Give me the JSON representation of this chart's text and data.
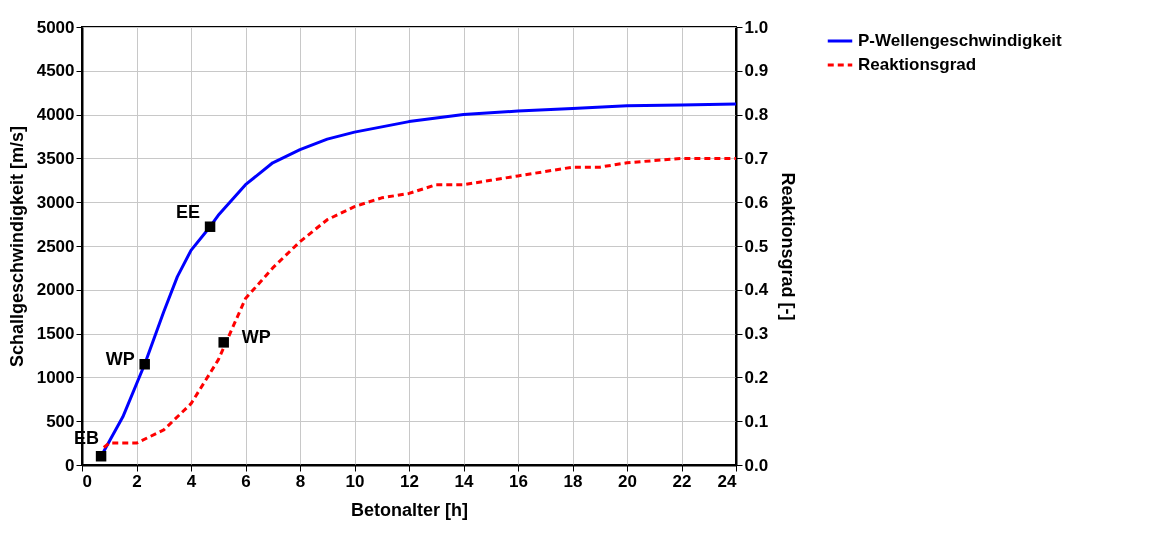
{
  "chart_data": {
    "type": "line",
    "xlabel": "Betonalter [h]",
    "ylabel": "Schallgeschwindigkeit [m/s]",
    "y2label": "Reaktionsgrad [-]",
    "xlim": [
      0,
      24
    ],
    "xticks": [
      0,
      2,
      4,
      6,
      8,
      10,
      12,
      14,
      16,
      18,
      20,
      22,
      24
    ],
    "ylim": [
      0,
      5000
    ],
    "yticks": [
      0,
      500,
      1000,
      1500,
      2000,
      2500,
      3000,
      3500,
      4000,
      4500,
      5000
    ],
    "y2lim": [
      0,
      1
    ],
    "y2ticks": [
      {
        "value": 0,
        "label": "0.0"
      },
      {
        "value": 0.1,
        "label": "0.1"
      },
      {
        "value": 0.2,
        "label": "0.2"
      },
      {
        "value": 0.3,
        "label": "0.3"
      },
      {
        "value": 0.4,
        "label": "0.4"
      },
      {
        "value": 0.5,
        "label": "0.5"
      },
      {
        "value": 0.6,
        "label": "0.6"
      },
      {
        "value": 0.7,
        "label": "0.7"
      },
      {
        "value": 0.8,
        "label": "0.8"
      },
      {
        "value": 0.9,
        "label": "0.9"
      },
      {
        "value": 1,
        "label": "1.0"
      }
    ],
    "grid": true,
    "legend": "top right",
    "series": [
      {
        "name": "P-Wellengeschwindigkeit",
        "color": "#0000ff",
        "line_style": "solid",
        "marker": "none",
        "x": [
          0.7,
          1.5,
          2.3,
          3,
          3.5,
          4,
          4.7,
          5,
          6,
          7,
          8,
          9,
          10,
          12,
          14,
          16,
          18,
          20,
          22,
          24
        ],
        "values": [
          100,
          550,
          1150,
          1750,
          2150,
          2450,
          2720,
          2850,
          3200,
          3450,
          3600,
          3720,
          3800,
          3920,
          4000,
          4040,
          4070,
          4100,
          4110,
          4120
        ]
      },
      {
        "name": "Reaktionsgrad",
        "axis": "y2",
        "color": "#ff0000",
        "line_style": "dashed",
        "marker": "none",
        "x": [
          0.8,
          1,
          2,
          3,
          4,
          5,
          5.5,
          6,
          7,
          8,
          9,
          10,
          11,
          12,
          13,
          14,
          15,
          16,
          17,
          18,
          19,
          20,
          22,
          24
        ],
        "values": [
          0.04,
          0.05,
          0.05,
          0.08,
          0.14,
          0.24,
          0.31,
          0.38,
          0.45,
          0.51,
          0.56,
          0.59,
          0.61,
          0.62,
          0.64,
          0.64,
          0.65,
          0.66,
          0.67,
          0.68,
          0.68,
          0.69,
          0.7,
          0.7
        ]
      },
      {
        "type": "scatter",
        "color": "#000000",
        "marker": "square",
        "x": [
          0.7,
          2.3,
          4.7
        ],
        "values": [
          100,
          1150,
          2720
        ]
      },
      {
        "type": "scatter",
        "axis": "y2",
        "color": "#000000",
        "marker": "square",
        "x": [
          5.2
        ],
        "values": [
          0.28
        ]
      }
    ],
    "annotations": [
      {
        "text": "EB",
        "x": 0.7,
        "y": 100
      },
      {
        "text": "WP",
        "x": 2.3,
        "y": 1150
      },
      {
        "text": "EE",
        "x": 4.7,
        "y": 2720
      },
      {
        "text": "WP",
        "x": 5.2,
        "y": 1400
      }
    ]
  }
}
